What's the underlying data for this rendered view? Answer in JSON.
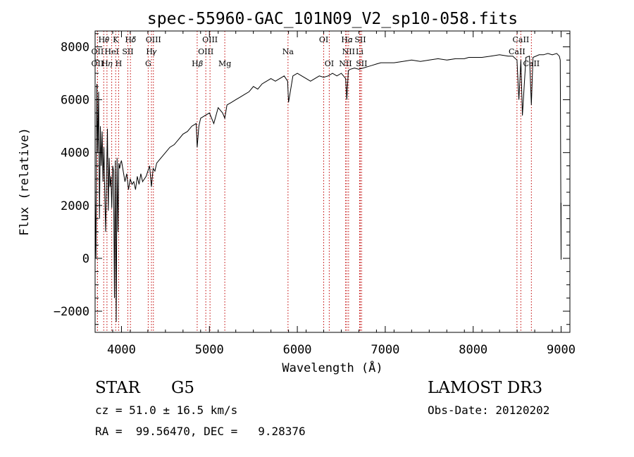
{
  "chart_data": {
    "type": "line",
    "title": "spec-55960-GAC_101N09_V2_sp10-058.fits",
    "xlabel": "Wavelength (Å)",
    "ylabel": "Flux (relative)",
    "xlim": [
      3700,
      9100
    ],
    "ylim": [
      -2800,
      8600
    ],
    "xticks": [
      4000,
      5000,
      6000,
      7000,
      8000,
      9000
    ],
    "yticks": [
      -2000,
      0,
      2000,
      4000,
      6000,
      8000
    ],
    "grid": false,
    "series": [
      {
        "x": [
          3700,
          3710,
          3720,
          3730,
          3740,
          3750,
          3760,
          3770,
          3780,
          3790,
          3800,
          3810,
          3820,
          3830,
          3840,
          3850,
          3860,
          3870,
          3880,
          3890,
          3900,
          3910,
          3920,
          3930,
          3940,
          3950,
          3960,
          3970,
          3980,
          3990,
          4000,
          4020,
          4040,
          4060,
          4080,
          4100,
          4120,
          4140,
          4160,
          4180,
          4200,
          4220,
          4240,
          4260,
          4280,
          4300,
          4320,
          4340,
          4360,
          4380,
          4400,
          4450,
          4500,
          4550,
          4600,
          4650,
          4700,
          4750,
          4800,
          4850,
          4861,
          4880,
          4900,
          4950,
          5000,
          5050,
          5100,
          5150,
          5175,
          5200,
          5250,
          5300,
          5350,
          5400,
          5450,
          5500,
          5550,
          5600,
          5650,
          5700,
          5750,
          5800,
          5850,
          5890,
          5900,
          5950,
          6000,
          6050,
          6100,
          6150,
          6200,
          6250,
          6300,
          6350,
          6400,
          6450,
          6500,
          6550,
          6563,
          6580,
          6600,
          6650,
          6700,
          6750,
          6800,
          6850,
          6900,
          6950,
          7000,
          7100,
          7200,
          7300,
          7400,
          7500,
          7600,
          7700,
          7800,
          7900,
          7950,
          8000,
          8100,
          8200,
          8300,
          8400,
          8450,
          8498,
          8520,
          8542,
          8560,
          8600,
          8640,
          8662,
          8680,
          8750,
          8800,
          8850,
          8900,
          8950,
          8980,
          8990,
          9000,
          9000
        ],
        "values": [
          2500,
          0,
          6600,
          4000,
          6300,
          1500,
          5000,
          3500,
          4800,
          2900,
          4200,
          2500,
          1000,
          3000,
          4900,
          1800,
          3800,
          2700,
          3100,
          1900,
          3500,
          3300,
          -1500,
          3700,
          -2400,
          3800,
          1000,
          3600,
          3400,
          3600,
          3700,
          3300,
          2900,
          3200,
          2600,
          3000,
          2800,
          2900,
          2600,
          3100,
          2800,
          3200,
          2900,
          3000,
          3100,
          3300,
          3500,
          2700,
          3400,
          3300,
          3600,
          3800,
          4000,
          4200,
          4300,
          4500,
          4700,
          4800,
          5000,
          5100,
          4200,
          5000,
          5300,
          5400,
          5500,
          5100,
          5700,
          5500,
          5300,
          5800,
          5900,
          6000,
          6100,
          6200,
          6300,
          6500,
          6400,
          6600,
          6700,
          6800,
          6700,
          6800,
          6900,
          6700,
          5900,
          6900,
          7000,
          6900,
          6800,
          6700,
          6800,
          6900,
          6850,
          6900,
          7000,
          6900,
          7000,
          6800,
          6000,
          7100,
          7150,
          7200,
          7150,
          7200,
          7250,
          7300,
          7350,
          7400,
          7400,
          7400,
          7450,
          7500,
          7450,
          7500,
          7550,
          7500,
          7550,
          7550,
          7600,
          7600,
          7600,
          7650,
          7700,
          7650,
          7650,
          7500,
          6000,
          7500,
          5400,
          7600,
          7650,
          5800,
          7600,
          7700,
          7700,
          7750,
          7700,
          7750,
          7650,
          7500,
          -50,
          2100
        ]
      }
    ],
    "lines": [
      {
        "label": "OII",
        "wavelength": 3727,
        "row": 2
      },
      {
        "label": "H𝜃",
        "wavelength": 3798,
        "row": 0
      },
      {
        "label": "OII",
        "wavelength": 3727,
        "row": 1
      },
      {
        "label": "H𝜂",
        "wavelength": 3835,
        "row": 2
      },
      {
        "label": "HeI",
        "wavelength": 3889,
        "row": 1
      },
      {
        "label": "K",
        "wavelength": 3934,
        "row": 0
      },
      {
        "label": "H",
        "wavelength": 3968,
        "row": 2
      },
      {
        "label": "SII",
        "wavelength": 4072,
        "row": 1
      },
      {
        "label": "H𝛿",
        "wavelength": 4102,
        "row": 0
      },
      {
        "label": "G",
        "wavelength": 4304,
        "row": 2
      },
      {
        "label": "H𝛾",
        "wavelength": 4341,
        "row": 1
      },
      {
        "label": "OIII",
        "wavelength": 4363,
        "row": 0
      },
      {
        "label": "H𝛽",
        "wavelength": 4861,
        "row": 2
      },
      {
        "label": "OIII",
        "wavelength": 4959,
        "row": 1
      },
      {
        "label": "OIII",
        "wavelength": 5007,
        "row": 0
      },
      {
        "label": "Mg",
        "wavelength": 5175,
        "row": 2
      },
      {
        "label": "Na",
        "wavelength": 5894,
        "row": 1
      },
      {
        "label": "OI",
        "wavelength": 6300,
        "row": 0
      },
      {
        "label": "OI",
        "wavelength": 6363,
        "row": 2
      },
      {
        "label": "NII",
        "wavelength": 6548,
        "row": 2
      },
      {
        "label": "NII",
        "wavelength": 6583,
        "row": 1
      },
      {
        "label": "H𝛼",
        "wavelength": 6563,
        "row": 0
      },
      {
        "label": "Li",
        "wavelength": 6708,
        "row": 1
      },
      {
        "label": "SII",
        "wavelength": 6716,
        "row": 0
      },
      {
        "label": "SII",
        "wavelength": 6731,
        "row": 2
      },
      {
        "label": "CaII",
        "wavelength": 8498,
        "row": 1
      },
      {
        "label": "CaII",
        "wavelength": 8542,
        "row": 0
      },
      {
        "label": "CaII",
        "wavelength": 8662,
        "row": 2
      }
    ]
  },
  "info": {
    "class": "STAR",
    "subclass": "G5",
    "survey": "LAMOST DR3",
    "cz": "cz = 51.0 ± 16.5 km/s",
    "obs_date": "Obs-Date: 20120202",
    "coords": "RA =  99.56470, DEC =   9.28376"
  },
  "colors": {
    "spectrum": "#000000",
    "line_markers": "#c00000",
    "axes": "#000000"
  }
}
